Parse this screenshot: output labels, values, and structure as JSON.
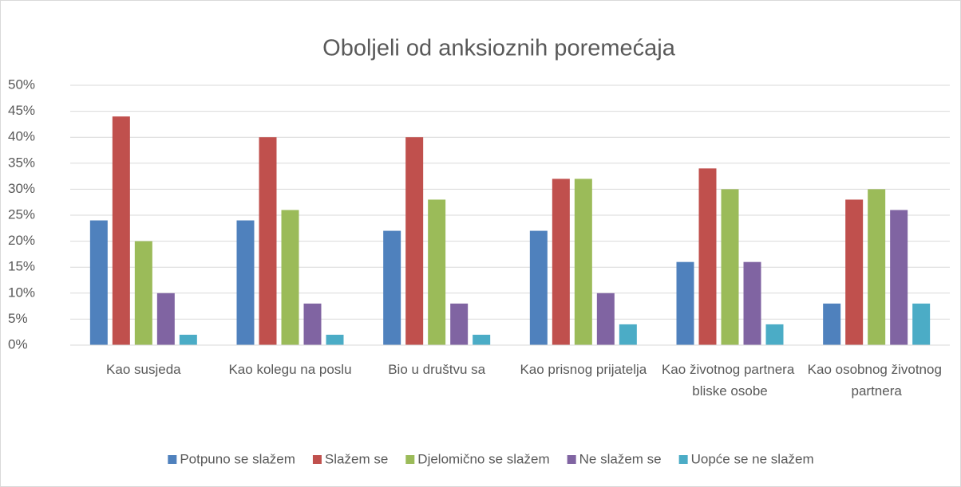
{
  "chart_data": {
    "type": "bar",
    "title": "Oboljeli od anksioznih poremećaja",
    "categories": [
      "Kao susjeda",
      "Kao kolegu na poslu",
      "Bio u društvu sa",
      "Kao prisnog prijatelja",
      "Kao životnog partnera bliske osobe",
      "Kao osobnog životnog partnera"
    ],
    "series": [
      {
        "name": "Potpuno se slažem",
        "color": "#4f81bd",
        "values": [
          24,
          24,
          22,
          22,
          16,
          8
        ]
      },
      {
        "name": "Slažem se",
        "color": "#c0504d",
        "values": [
          44,
          40,
          40,
          32,
          34,
          28
        ]
      },
      {
        "name": "Djelomično se slažem",
        "color": "#9bbb59",
        "values": [
          20,
          26,
          28,
          32,
          30,
          30
        ]
      },
      {
        "name": "Ne slažem se",
        "color": "#8064a2",
        "values": [
          10,
          8,
          8,
          10,
          16,
          26
        ]
      },
      {
        "name": "Uopće se ne slažem",
        "color": "#4bacc6",
        "values": [
          2,
          2,
          2,
          4,
          4,
          8
        ]
      }
    ],
    "ylim": [
      0,
      50
    ],
    "yticks": [
      {
        "value": 0,
        "label": "0%"
      },
      {
        "value": 5,
        "label": "5%"
      },
      {
        "value": 10,
        "label": "10%"
      },
      {
        "value": 15,
        "label": "15%"
      },
      {
        "value": 20,
        "label": "20%"
      },
      {
        "value": 25,
        "label": "25%"
      },
      {
        "value": 30,
        "label": "30%"
      },
      {
        "value": 35,
        "label": "35%"
      },
      {
        "value": 40,
        "label": "40%"
      },
      {
        "value": 45,
        "label": "45%"
      },
      {
        "value": 50,
        "label": "50%"
      }
    ],
    "grid": true,
    "legend": "bottom"
  }
}
